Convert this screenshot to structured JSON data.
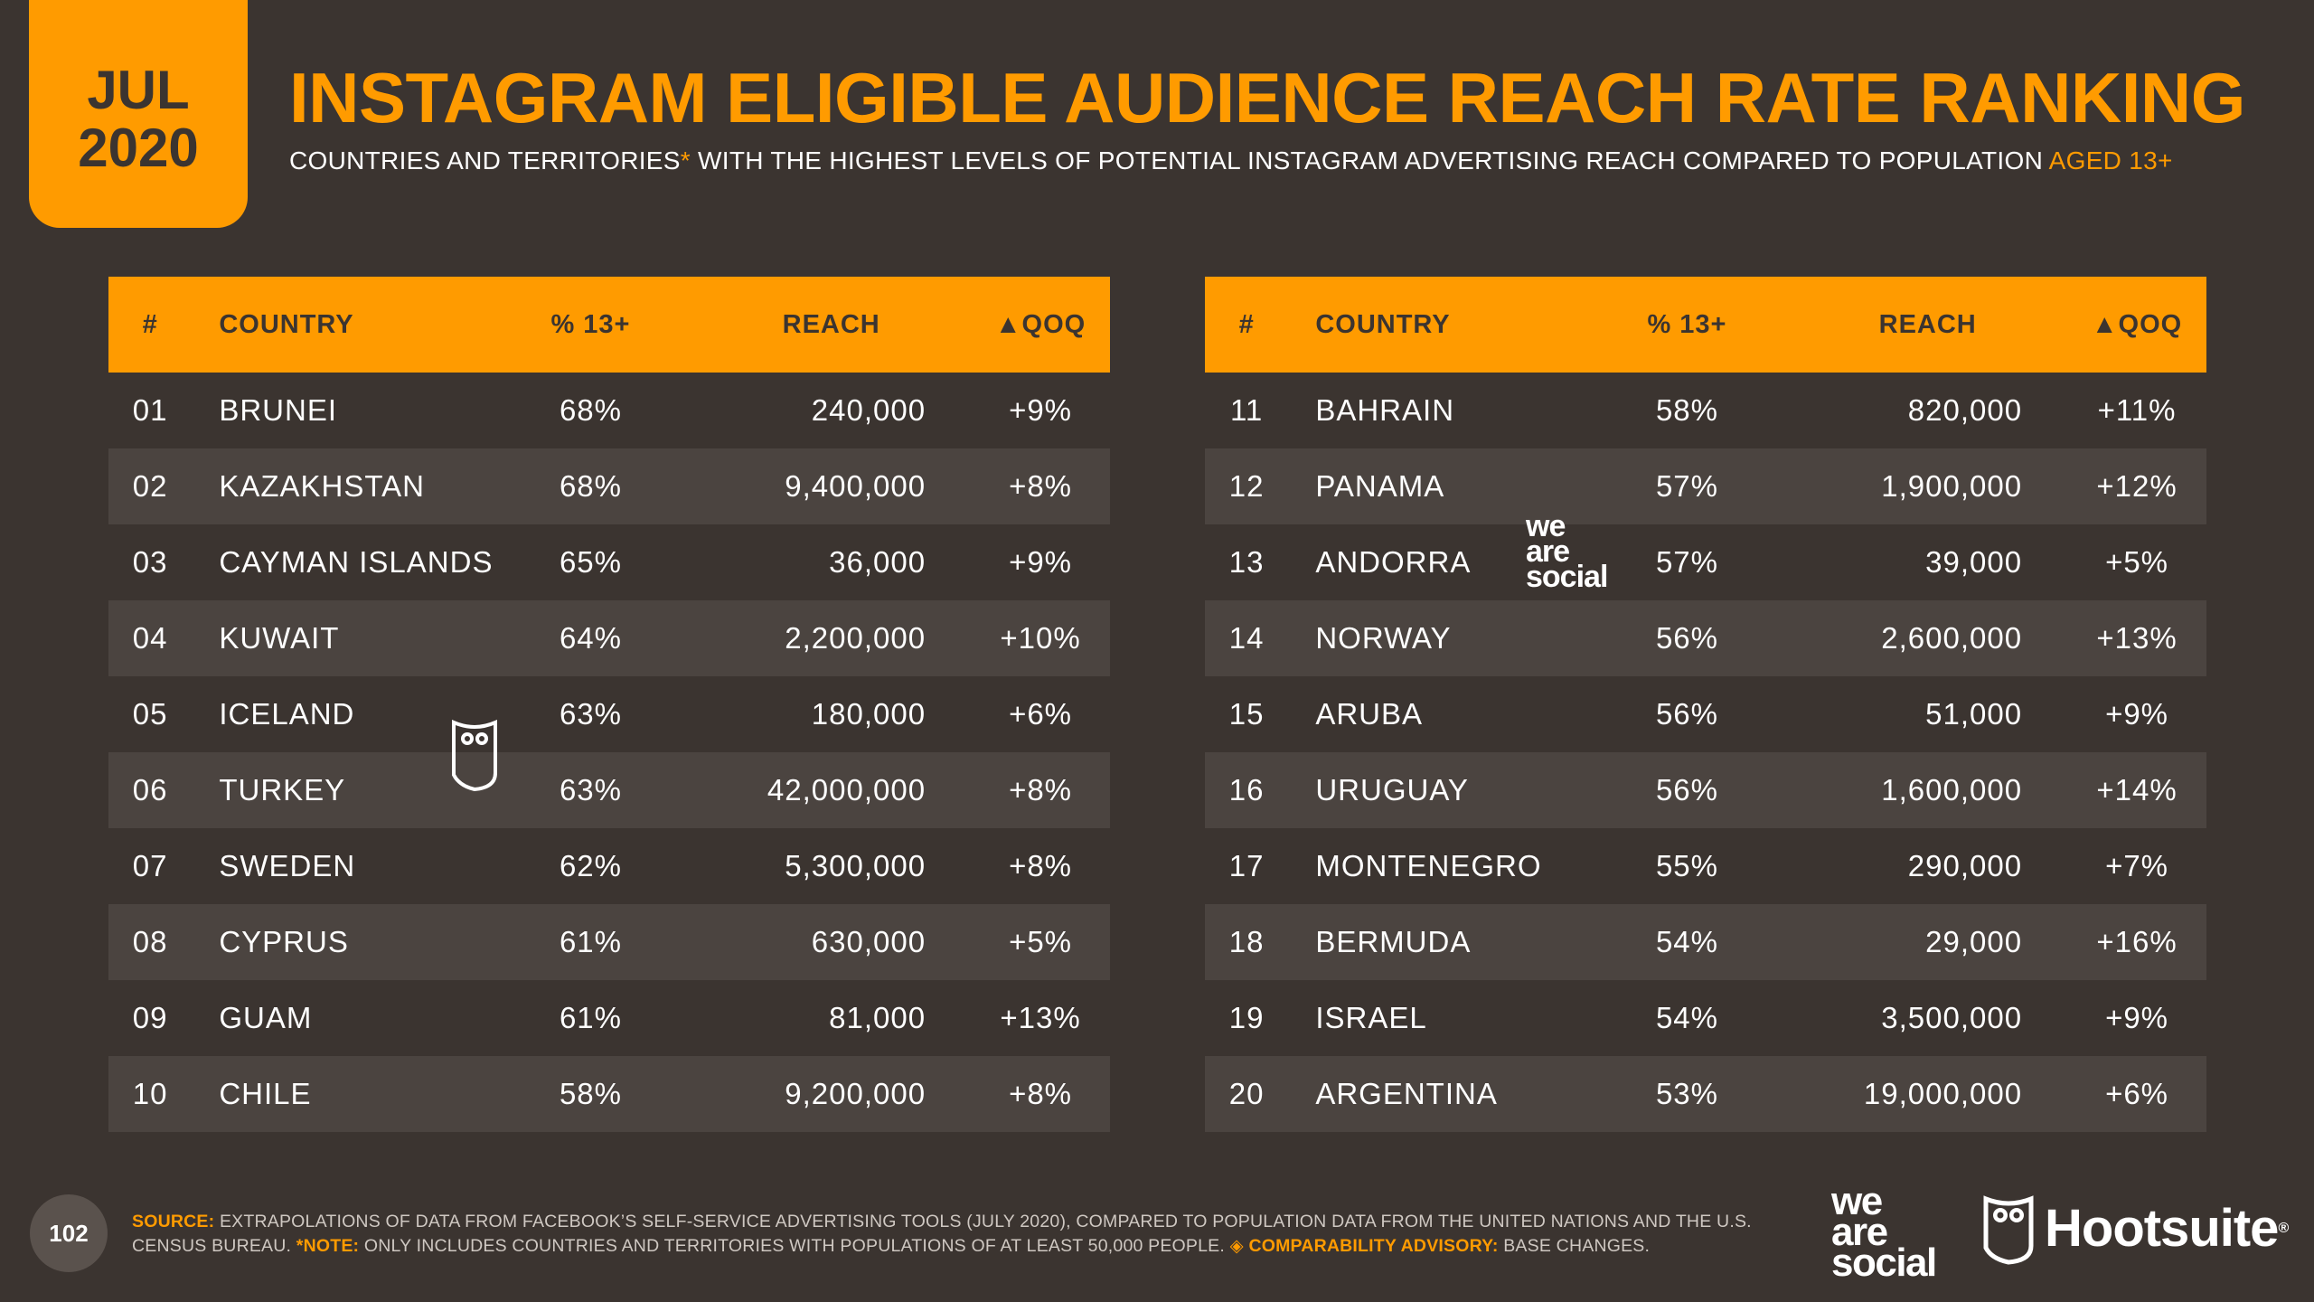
{
  "badge": {
    "month": "JUL",
    "year": "2020"
  },
  "title": "INSTAGRAM ELIGIBLE AUDIENCE REACH RATE RANKING",
  "subtitle": {
    "pre": "COUNTRIES AND TERRITORIES",
    "star": "*",
    "main": " WITH THE HIGHEST LEVELS OF POTENTIAL INSTAGRAM ADVERTISING REACH COMPARED TO POPULATION ",
    "aged": "AGED 13+"
  },
  "columns": {
    "num": "#",
    "country": "COUNTRY",
    "pct": "% 13+",
    "reach": "REACH",
    "qoq": "▲QOQ"
  },
  "table_left": [
    {
      "num": "01",
      "country": "BRUNEI",
      "pct": "68%",
      "reach": "240,000",
      "qoq": "+9%"
    },
    {
      "num": "02",
      "country": "KAZAKHSTAN",
      "pct": "68%",
      "reach": "9,400,000",
      "qoq": "+8%"
    },
    {
      "num": "03",
      "country": "CAYMAN ISLANDS",
      "pct": "65%",
      "reach": "36,000",
      "qoq": "+9%"
    },
    {
      "num": "04",
      "country": "KUWAIT",
      "pct": "64%",
      "reach": "2,200,000",
      "qoq": "+10%"
    },
    {
      "num": "05",
      "country": "ICELAND",
      "pct": "63%",
      "reach": "180,000",
      "qoq": "+6%"
    },
    {
      "num": "06",
      "country": "TURKEY",
      "pct": "63%",
      "reach": "42,000,000",
      "qoq": "+8%"
    },
    {
      "num": "07",
      "country": "SWEDEN",
      "pct": "62%",
      "reach": "5,300,000",
      "qoq": "+8%"
    },
    {
      "num": "08",
      "country": "CYPRUS",
      "pct": "61%",
      "reach": "630,000",
      "qoq": "+5%"
    },
    {
      "num": "09",
      "country": "GUAM",
      "pct": "61%",
      "reach": "81,000",
      "qoq": "+13%"
    },
    {
      "num": "10",
      "country": "CHILE",
      "pct": "58%",
      "reach": "9,200,000",
      "qoq": "+8%"
    }
  ],
  "table_right": [
    {
      "num": "11",
      "country": "BAHRAIN",
      "pct": "58%",
      "reach": "820,000",
      "qoq": "+11%"
    },
    {
      "num": "12",
      "country": "PANAMA",
      "pct": "57%",
      "reach": "1,900,000",
      "qoq": "+12%"
    },
    {
      "num": "13",
      "country": "ANDORRA",
      "pct": "57%",
      "reach": "39,000",
      "qoq": "+5%"
    },
    {
      "num": "14",
      "country": "NORWAY",
      "pct": "56%",
      "reach": "2,600,000",
      "qoq": "+13%"
    },
    {
      "num": "15",
      "country": "ARUBA",
      "pct": "56%",
      "reach": "51,000",
      "qoq": "+9%"
    },
    {
      "num": "16",
      "country": "URUGUAY",
      "pct": "56%",
      "reach": "1,600,000",
      "qoq": "+14%"
    },
    {
      "num": "17",
      "country": "MONTENEGRO",
      "pct": "55%",
      "reach": "290,000",
      "qoq": "+7%"
    },
    {
      "num": "18",
      "country": "BERMUDA",
      "pct": "54%",
      "reach": "29,000",
      "qoq": "+16%"
    },
    {
      "num": "19",
      "country": "ISRAEL",
      "pct": "54%",
      "reach": "3,500,000",
      "qoq": "+9%"
    },
    {
      "num": "20",
      "country": "ARGENTINA",
      "pct": "53%",
      "reach": "19,000,000",
      "qoq": "+6%"
    }
  ],
  "watermark": {
    "line1": "we",
    "line2": "are",
    "line3": "social"
  },
  "footer": {
    "page": "102",
    "source_label": "SOURCE:",
    "source_text": " EXTRAPOLATIONS OF DATA FROM FACEBOOK’S SELF-SERVICE ADVERTISING TOOLS (JULY 2020), COMPARED TO POPULATION DATA FROM THE UNITED NATIONS AND THE U.S. CENSUS BUREAU. ",
    "note_label": "*NOTE:",
    "note_text": " ONLY INCLUDES COUNTRIES AND TERRITORIES WITH POPULATIONS OF AT LEAST 50,000 PEOPLE. ",
    "advisory_label": "◈ COMPARABILITY ADVISORY:",
    "advisory_text": " BASE CHANGES.",
    "brand1": {
      "line1": "we",
      "line2": "are",
      "line3": "social"
    },
    "brand2": "Hootsuite",
    "brand2_mark": "®"
  },
  "colors": {
    "accent": "#ff9b00",
    "background": "#3b3430",
    "stripe": "#4b4440"
  }
}
